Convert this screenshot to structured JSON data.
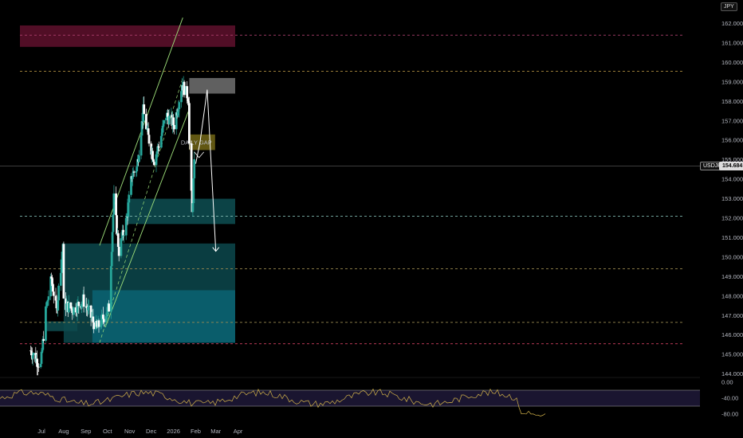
{
  "chart_data": [
    {
      "type": "candlestick",
      "symbol": "USDJPY",
      "currency": "JPY",
      "last_price": "154.684",
      "ylim": [
        144.0,
        162.5
      ],
      "y_ticks": [
        "162.000",
        "161.000",
        "160.000",
        "159.000",
        "158.000",
        "157.000",
        "156.000",
        "155.000",
        "154.000",
        "153.000",
        "152.000",
        "151.000",
        "150.000",
        "149.000",
        "148.000",
        "147.000",
        "146.000",
        "145.000",
        "144.000"
      ],
      "x_ticks": [
        "Jul",
        "Aug",
        "Sep",
        "Oct",
        "Nov",
        "Dec",
        "2026",
        "Feb",
        "Mar",
        "Apr"
      ],
      "price_anchors": [
        {
          "date": "2025-06-16",
          "price": 145.2
        },
        {
          "date": "2025-06-30",
          "price": 144.4
        },
        {
          "date": "2025-07-07",
          "price": 147.2
        },
        {
          "date": "2025-07-15",
          "price": 148.9
        },
        {
          "date": "2025-07-22",
          "price": 147.2
        },
        {
          "date": "2025-07-31",
          "price": 150.7
        },
        {
          "date": "2025-08-01",
          "price": 147.6
        },
        {
          "date": "2025-08-14",
          "price": 147.3
        },
        {
          "date": "2025-08-28",
          "price": 147.8
        },
        {
          "date": "2025-09-16",
          "price": 146.3
        },
        {
          "date": "2025-10-03",
          "price": 147.4
        },
        {
          "date": "2025-10-10",
          "price": 153.0
        },
        {
          "date": "2025-10-17",
          "price": 150.3
        },
        {
          "date": "2025-10-28",
          "price": 152.0
        },
        {
          "date": "2025-11-04",
          "price": 154.2
        },
        {
          "date": "2025-11-11",
          "price": 154.6
        },
        {
          "date": "2025-11-20",
          "price": 157.5
        },
        {
          "date": "2025-11-26",
          "price": 156.3
        },
        {
          "date": "2025-12-05",
          "price": 155.0
        },
        {
          "date": "2025-12-12",
          "price": 155.8
        },
        {
          "date": "2025-12-22",
          "price": 157.3
        },
        {
          "date": "2026-01-02",
          "price": 156.8
        },
        {
          "date": "2026-01-13",
          "price": 158.9
        },
        {
          "date": "2026-01-22",
          "price": 158.2
        },
        {
          "date": "2026-01-23",
          "price": 155.8
        },
        {
          "date": "2026-01-27",
          "price": 152.2
        },
        {
          "date": "2026-01-30",
          "price": 154.7
        }
      ],
      "zones": [
        {
          "from": "2025-06-01",
          "to": "2026-03-28",
          "low": 160.8,
          "high": 161.9,
          "color": "#5a0f2a"
        },
        {
          "from": "2026-01-23",
          "to": "2026-03-28",
          "low": 158.4,
          "high": 159.2,
          "color": "#6a6a6a"
        },
        {
          "from": "2026-01-23",
          "to": "2026-02-28",
          "low": 155.5,
          "high": 156.3,
          "color": "#6b6114",
          "label": "DAILY GAP"
        },
        {
          "from": "2025-10-28",
          "to": "2026-03-28",
          "low": 151.7,
          "high": 153.0,
          "color": "#0d4a4e"
        },
        {
          "from": "2025-08-01",
          "to": "2026-03-28",
          "low": 145.6,
          "high": 150.7,
          "color": "#0b4448"
        },
        {
          "from": "2025-09-10",
          "to": "2026-03-28",
          "low": 145.6,
          "high": 148.3,
          "color": "#0a6070"
        },
        {
          "from": "2025-07-08",
          "to": "2025-08-20",
          "low": 146.2,
          "high": 146.7,
          "color": "#0d4a4e"
        }
      ],
      "channel": [
        {
          "from": [
            "2025-09-20",
            150.6
          ],
          "to": [
            "2026-01-14",
            162.3
          ]
        },
        {
          "from": [
            "2025-09-28",
            146.4
          ],
          "to": [
            "2026-01-23",
            157.6
          ]
        }
      ],
      "projection": [
        [
          "2026-02-01",
          154.8
        ],
        [
          "2026-02-07",
          155.9
        ],
        [
          "2026-02-17",
          158.6
        ],
        [
          "2026-03-01",
          150.3
        ]
      ],
      "indicator": {
        "type": "rsi",
        "y_ticks": [
          "0.00",
          "-40.00",
          "-80.00"
        ],
        "levels": [
          -20,
          -60
        ],
        "color": "#d4b44a"
      }
    }
  ]
}
